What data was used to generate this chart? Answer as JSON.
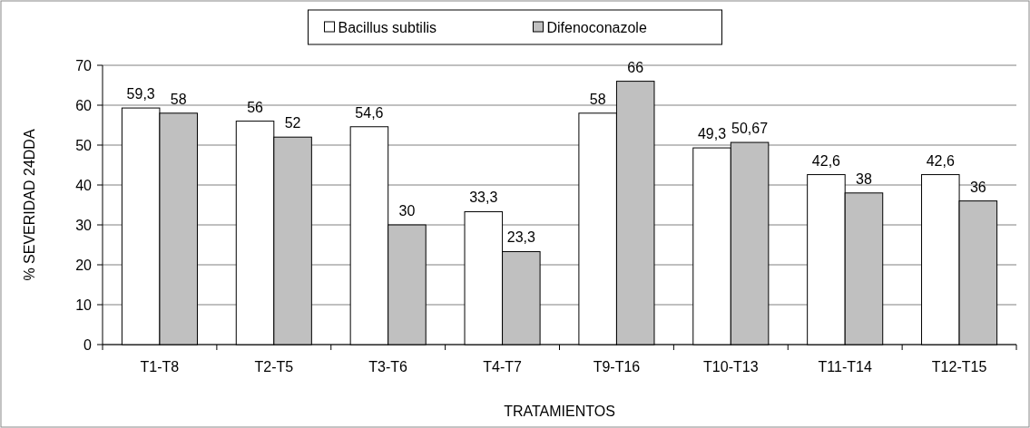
{
  "chart_data": {
    "type": "bar",
    "xlabel": "TRATAMIENTOS",
    "ylabel": "% SEVERIDAD 24DDA",
    "categories": [
      "T1-T8",
      "T2-T5",
      "T3-T6",
      "T4-T7",
      "T9-T16",
      "T10-T13",
      "T11-T14",
      "T12-T15"
    ],
    "series": [
      {
        "name": "Bacillus subtilis",
        "color": "#ffffff",
        "values": [
          59.3,
          56,
          54.6,
          33.3,
          58,
          49.3,
          42.6,
          42.6
        ],
        "value_labels": [
          "59,3",
          "56",
          "54,6",
          "33,3",
          "58",
          "49,3",
          "42,6",
          "42,6"
        ]
      },
      {
        "name": "Difenoconazole",
        "color": "#c0c0c0",
        "values": [
          58,
          52,
          30,
          23.3,
          66,
          50.67,
          38,
          36
        ],
        "value_labels": [
          "58",
          "52",
          "30",
          "23,3",
          "66",
          "50,67",
          "38",
          "36"
        ]
      }
    ],
    "ylim": [
      0,
      70
    ],
    "yticks": [
      0,
      10,
      20,
      30,
      40,
      50,
      60,
      70
    ],
    "grid": "y",
    "legend": "top"
  }
}
